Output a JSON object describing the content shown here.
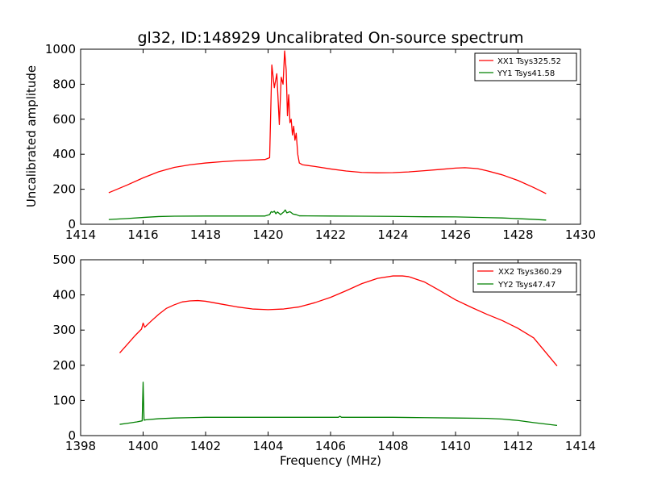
{
  "figure": {
    "title": "gl32, ID:148929 Uncalibrated On-source spectrum",
    "ylabel": "Uncalibrated amplitude",
    "xlabel": "Frequency (MHz)"
  },
  "chart_data": [
    {
      "type": "line",
      "xlim": [
        1414,
        1430
      ],
      "ylim": [
        0,
        1000
      ],
      "xticks": [
        "1414",
        "1416",
        "1418",
        "1420",
        "1422",
        "1424",
        "1426",
        "1428",
        "1430"
      ],
      "yticks": [
        "0",
        "200",
        "400",
        "600",
        "800",
        "1000"
      ],
      "legend_position": "top-right",
      "series": [
        {
          "name": "XX1 Tsys325.52",
          "color": "#ff0000",
          "x": [
            1414.9,
            1415.5,
            1416,
            1416.5,
            1417,
            1417.5,
            1418,
            1418.5,
            1419,
            1419.5,
            1419.9,
            1420.05,
            1420.12,
            1420.2,
            1420.28,
            1420.36,
            1420.42,
            1420.48,
            1420.53,
            1420.58,
            1420.62,
            1420.66,
            1420.7,
            1420.74,
            1420.78,
            1420.82,
            1420.86,
            1420.9,
            1420.95,
            1421.0,
            1421.1,
            1421.5,
            1422,
            1422.5,
            1423,
            1423.5,
            1424,
            1424.5,
            1425,
            1425.5,
            1426,
            1426.3,
            1426.7,
            1427,
            1427.5,
            1428,
            1428.5,
            1428.9
          ],
          "values": [
            180,
            225,
            265,
            300,
            325,
            340,
            350,
            357,
            363,
            367,
            370,
            380,
            910,
            780,
            860,
            570,
            840,
            800,
            990,
            880,
            620,
            740,
            580,
            600,
            510,
            560,
            480,
            520,
            400,
            350,
            340,
            330,
            316,
            304,
            296,
            294,
            295,
            299,
            306,
            313,
            321,
            323,
            318,
            306,
            282,
            250,
            210,
            175
          ]
        },
        {
          "name": "YY1 Tsys41.58",
          "color": "#008000",
          "x": [
            1414.9,
            1415.5,
            1416,
            1416.5,
            1417,
            1418,
            1419,
            1419.9,
            1420.05,
            1420.1,
            1420.15,
            1420.2,
            1420.25,
            1420.3,
            1420.4,
            1420.5,
            1420.55,
            1420.6,
            1420.7,
            1420.8,
            1420.9,
            1421.0,
            1422,
            1423,
            1424,
            1425,
            1426,
            1427,
            1427.5,
            1428,
            1428.5,
            1428.9
          ],
          "values": [
            27,
            33,
            39,
            44,
            46,
            47,
            47,
            47,
            55,
            72,
            68,
            75,
            60,
            70,
            55,
            70,
            82,
            65,
            72,
            58,
            55,
            48,
            47,
            46,
            45,
            43,
            42,
            38,
            36,
            32,
            28,
            24
          ]
        }
      ]
    },
    {
      "type": "line",
      "xlim": [
        1398,
        1414
      ],
      "ylim": [
        0,
        500
      ],
      "xticks": [
        "1398",
        "1400",
        "1402",
        "1404",
        "1406",
        "1408",
        "1410",
        "1412",
        "1414"
      ],
      "yticks": [
        "0",
        "100",
        "200",
        "300",
        "400",
        "500"
      ],
      "legend_position": "top-right",
      "series": [
        {
          "name": "XX2 Tsys360.29",
          "color": "#ff0000",
          "x": [
            1399.25,
            1399.5,
            1399.75,
            1399.95,
            1400.0,
            1400.05,
            1400.25,
            1400.5,
            1400.75,
            1401,
            1401.25,
            1401.5,
            1401.75,
            1402,
            1402.5,
            1403,
            1403.5,
            1404,
            1404.5,
            1405,
            1405.5,
            1406,
            1406.5,
            1407,
            1407.5,
            1408,
            1408.3,
            1408.5,
            1409,
            1409.5,
            1410,
            1410.5,
            1411,
            1411.5,
            1412,
            1412.5,
            1413.25
          ],
          "values": [
            235,
            260,
            285,
            303,
            320,
            308,
            325,
            345,
            362,
            372,
            380,
            383,
            384,
            382,
            374,
            366,
            360,
            358,
            360,
            366,
            378,
            393,
            412,
            432,
            447,
            454,
            454,
            452,
            437,
            412,
            386,
            365,
            345,
            327,
            305,
            278,
            198
          ]
        },
        {
          "name": "YY2 Tsys47.47",
          "color": "#008000",
          "x": [
            1399.25,
            1399.5,
            1399.8,
            1399.97,
            1400.0,
            1400.03,
            1400.1,
            1400.5,
            1401,
            1401.5,
            1402,
            1403,
            1404,
            1405,
            1406,
            1406.25,
            1406.3,
            1406.35,
            1407,
            1408,
            1409,
            1410,
            1411,
            1411.5,
            1412,
            1412.5,
            1413.25
          ],
          "values": [
            32,
            35,
            39,
            42,
            152,
            44,
            45,
            48,
            50,
            51,
            52,
            52,
            52,
            52,
            52,
            52,
            55,
            52,
            52,
            52,
            51,
            50,
            49,
            47,
            43,
            37,
            29
          ]
        }
      ]
    }
  ]
}
